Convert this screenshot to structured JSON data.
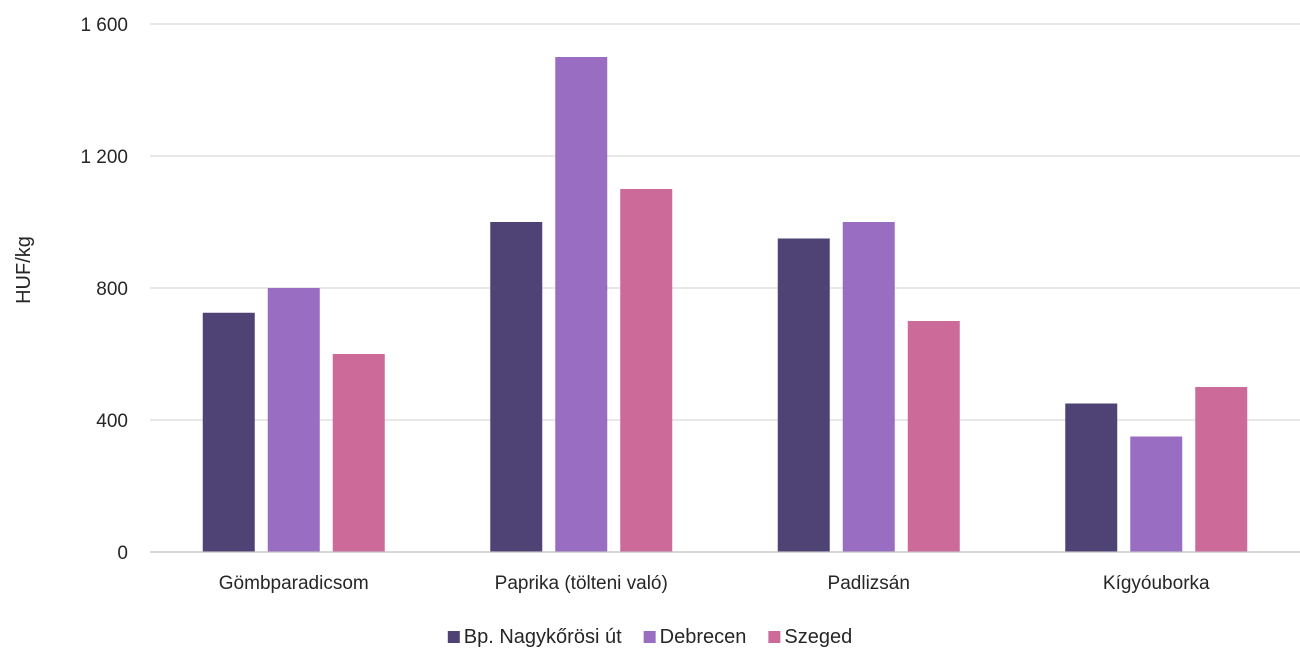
{
  "chart_data": {
    "type": "bar",
    "categories": [
      "Gömbparadicsom",
      "Paprika (tölteni való)",
      "Padlizsán",
      "Kígyóuborka"
    ],
    "series": [
      {
        "name": "Bp. Nagykőrösi út",
        "color": "#4e4374",
        "values": [
          725,
          1000,
          950,
          450
        ]
      },
      {
        "name": "Debrecen",
        "color": "#986dc2",
        "values": [
          800,
          1500,
          1000,
          350
        ]
      },
      {
        "name": "Szeged",
        "color": "#cc6a9a",
        "values": [
          600,
          1100,
          700,
          500
        ]
      }
    ],
    "ylabel": "HUF/kg",
    "ylim": [
      0,
      1600
    ],
    "yticks": [
      0,
      400,
      800,
      1200,
      1600
    ],
    "ytick_labels": [
      "0",
      "400",
      "800",
      "1 200",
      "1 600"
    ],
    "grid": true,
    "legend_position": "bottom"
  }
}
